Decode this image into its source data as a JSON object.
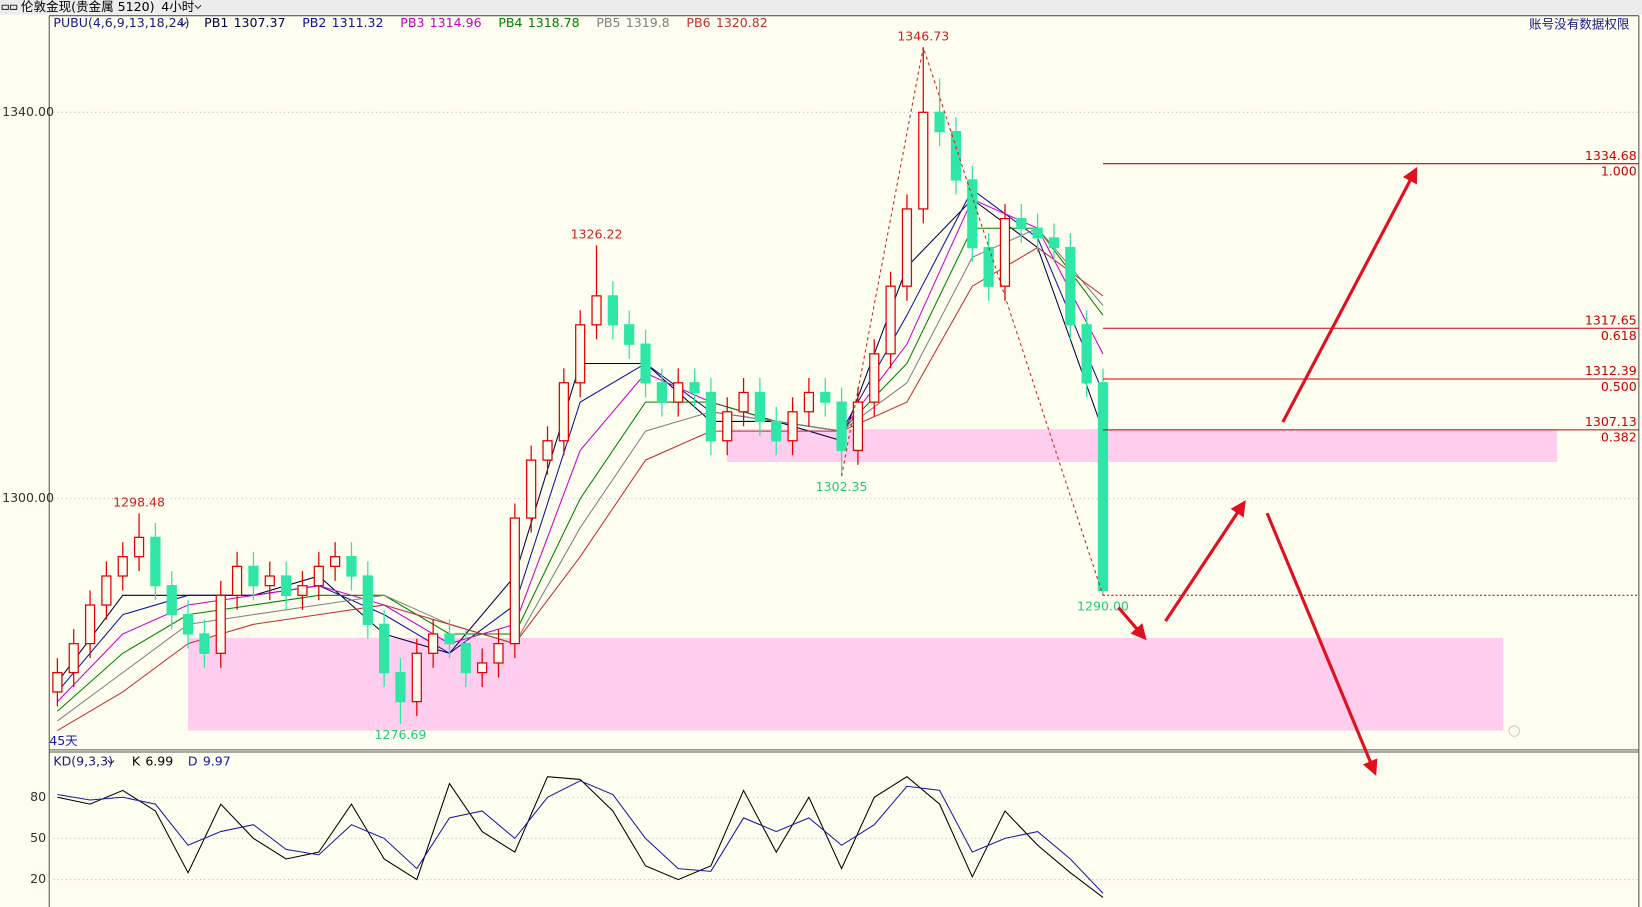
{
  "header": {
    "instrument": "伦敦金现(贵金属 5120)",
    "timeframe": "4小时",
    "notice": "账号没有数据权限"
  },
  "chart_data": [
    {
      "type": "candlestick",
      "indicator": "PUBU(4,6,9,13,18,24)",
      "period_label": "45天",
      "xlim": [
        -0.5,
        96.8
      ],
      "ylim": [
        1274,
        1350
      ],
      "yticks": [
        {
          "value": 1340,
          "label": "1340.00"
        },
        {
          "value": 1300,
          "label": "1300.00"
        }
      ],
      "grid": true,
      "up_color": "#e00000",
      "down_color": "#2fe6a6",
      "open": [
        1280,
        1282,
        1285,
        1289,
        1292,
        1294,
        1296,
        1291,
        1288,
        1286,
        1284,
        1290,
        1293,
        1291,
        1292,
        1290,
        1291,
        1293,
        1294,
        1292,
        1287,
        1282,
        1279,
        1284,
        1286,
        1285,
        1282,
        1283,
        1285,
        1298,
        1304,
        1306,
        1312,
        1318,
        1321,
        1318,
        1316,
        1312,
        1310,
        1312,
        1311,
        1306,
        1309,
        1311,
        1308,
        1306,
        1309,
        1311,
        1310,
        1305,
        1310,
        1315,
        1322,
        1330,
        1340,
        1338,
        1333,
        1326,
        1322,
        1329,
        1328,
        1327,
        1326,
        1318,
        1312
      ],
      "high": [
        1283.5,
        1286.5,
        1290.5,
        1293.5,
        1295.5,
        1298.48,
        1297.5,
        1292.5,
        1289.5,
        1287.5,
        1291.5,
        1294.5,
        1294.5,
        1293.5,
        1293.5,
        1292.5,
        1294.5,
        1295.5,
        1295.5,
        1293.5,
        1288.5,
        1283.5,
        1285.5,
        1287.5,
        1287.5,
        1286.5,
        1284.5,
        1286.5,
        1299.5,
        1305.5,
        1307.5,
        1313.5,
        1319.5,
        1326.22,
        1322.5,
        1319.5,
        1317.5,
        1313.5,
        1313.5,
        1313.5,
        1312.5,
        1310.5,
        1312.5,
        1312.5,
        1309.5,
        1310.5,
        1312.5,
        1312.5,
        1311.5,
        1311.5,
        1316.5,
        1323.5,
        1331.5,
        1346.73,
        1343.5,
        1339.5,
        1334.5,
        1327.5,
        1330.5,
        1330.5,
        1329.5,
        1328.5,
        1327.5,
        1319.5,
        1313.5
      ],
      "low": [
        1278.5,
        1280.5,
        1283.5,
        1287.5,
        1290.5,
        1292.5,
        1289.5,
        1286.5,
        1284.5,
        1282.5,
        1282.5,
        1288.5,
        1289.5,
        1289.5,
        1288.5,
        1288.5,
        1289.5,
        1291.5,
        1290.5,
        1285.5,
        1280.5,
        1276.69,
        1277.5,
        1282.5,
        1283.5,
        1280.5,
        1280.5,
        1281.5,
        1283.5,
        1296.5,
        1302.5,
        1304.5,
        1310.5,
        1316.5,
        1316.5,
        1314.5,
        1310.5,
        1308.5,
        1308.5,
        1309.5,
        1304.5,
        1304.5,
        1307.5,
        1306.5,
        1304.5,
        1304.5,
        1307.5,
        1308.5,
        1302.35,
        1303.5,
        1308.5,
        1313.5,
        1320.5,
        1328.5,
        1336.5,
        1331.5,
        1324.5,
        1320.5,
        1320.5,
        1326.5,
        1325.5,
        1324.5,
        1316.5,
        1310.5,
        1290
      ],
      "close": [
        1282,
        1285,
        1289,
        1292,
        1294,
        1296,
        1291,
        1288,
        1286,
        1284,
        1290,
        1293,
        1291,
        1292,
        1290,
        1291,
        1293,
        1294,
        1292,
        1287,
        1282,
        1279,
        1284,
        1286,
        1285,
        1282,
        1283,
        1285,
        1298,
        1304,
        1306,
        1312,
        1318,
        1321,
        1318,
        1316,
        1312,
        1310,
        1312,
        1311,
        1306,
        1309,
        1311,
        1308,
        1306,
        1309,
        1311,
        1310,
        1305,
        1310,
        1315,
        1322,
        1330,
        1340,
        1338,
        1333,
        1326,
        1322,
        1329,
        1328,
        1327,
        1326,
        1318,
        1312,
        1290.5
      ],
      "series_x": [
        0,
        4,
        8,
        12,
        16,
        20,
        24,
        28,
        32,
        36,
        40,
        44,
        48,
        52,
        56,
        60,
        64
      ],
      "series": [
        {
          "name": "PB1",
          "last": 1307.37,
          "color": "#000040",
          "values": [
            1281,
            1290,
            1290,
            1290,
            1292,
            1286,
            1284,
            1292,
            1314,
            1314,
            1308,
            1308,
            1306,
            1324,
            1331,
            1326,
            1307
          ]
        },
        {
          "name": "PB2",
          "last": 1311.32,
          "color": "#1010a0",
          "values": [
            1280,
            1288,
            1290,
            1290,
            1291,
            1288,
            1284,
            1289,
            1310,
            1314,
            1309,
            1308,
            1307,
            1319,
            1332,
            1327,
            1311
          ]
        },
        {
          "name": "PB3",
          "last": 1314.96,
          "color": "#cc00cc",
          "values": [
            1279,
            1286,
            1289,
            1290,
            1291,
            1289,
            1285,
            1287,
            1305,
            1313,
            1310,
            1308,
            1307,
            1316,
            1331,
            1328,
            1315
          ]
        },
        {
          "name": "PB4",
          "last": 1318.78,
          "color": "#008000",
          "values": [
            1278,
            1284,
            1288,
            1289,
            1290,
            1290,
            1286,
            1286,
            1300,
            1310,
            1310,
            1308,
            1307,
            1314,
            1328,
            1328,
            1319
          ]
        },
        {
          "name": "PB5",
          "last": 1319.8,
          "color": "#808080",
          "values": [
            1277,
            1282,
            1287,
            1288,
            1289,
            1290,
            1287,
            1285,
            1297,
            1307,
            1309,
            1308,
            1307,
            1312,
            1325,
            1328,
            1320
          ]
        },
        {
          "name": "PB6",
          "last": 1320.82,
          "color": "#c03030",
          "values": [
            1276,
            1280,
            1285,
            1287,
            1288,
            1289,
            1287,
            1285,
            1294,
            1304,
            1307,
            1307,
            1307,
            1310,
            1322,
            1326,
            1321
          ]
        }
      ],
      "annotations": [
        {
          "x": 5,
          "y": 1298.48
        },
        {
          "x": 33,
          "y": 1326.22
        },
        {
          "x": 53,
          "y": 1346.73
        },
        {
          "x": 48,
          "y": 1302.35
        },
        {
          "x": 21,
          "y": 1276.69
        },
        {
          "x": 64,
          "y": 1290,
          "label": "1290.00"
        }
      ],
      "zones": [
        {
          "x": [
            41,
            91.8
          ],
          "y": [
            1303.8,
            1307.2
          ],
          "color": "#ffcdee"
        },
        {
          "x": [
            8,
            88.5
          ],
          "y": [
            1276,
            1285.6
          ],
          "color": "#ffcdee"
        }
      ],
      "fib_color": "#cc0000",
      "fib_levels": [
        {
          "price": 1334.68,
          "ratio": {
            "value": 1,
            "label": "1.000"
          }
        },
        {
          "price": 1317.65,
          "ratio": 0.618
        },
        {
          "price": 1312.39,
          "ratio": {
            "value": 0.5,
            "label": "0.500"
          }
        },
        {
          "price": 1307.13,
          "ratio": 0.382
        }
      ]
    },
    {
      "type": "line",
      "title": "KD(9,3,3)",
      "xlim": [
        -0.5,
        96.8
      ],
      "ylim": [
        0,
        113
      ],
      "yticks": [
        80,
        50,
        20
      ],
      "grid": true,
      "x": [
        0,
        2,
        4,
        6,
        8,
        10,
        12,
        14,
        16,
        18,
        20,
        22,
        24,
        26,
        28,
        30,
        32,
        34,
        36,
        38,
        40,
        42,
        44,
        46,
        48,
        50,
        52,
        54,
        56,
        58,
        60,
        62,
        64
      ],
      "series": [
        {
          "name": "K",
          "last": 6.99,
          "color": "#000000",
          "values": [
            80,
            75,
            85,
            70,
            25,
            75,
            50,
            35,
            40,
            75,
            35,
            20,
            90,
            55,
            40,
            95,
            93,
            70,
            30,
            20,
            30,
            85,
            40,
            80,
            28,
            80,
            95,
            75,
            22,
            70,
            45,
            25,
            7
          ]
        },
        {
          "name": "D",
          "last": 9.97,
          "color": "#1a1aa0",
          "values": [
            82,
            78,
            80,
            75,
            45,
            55,
            60,
            42,
            38,
            60,
            50,
            28,
            65,
            70,
            50,
            80,
            92,
            82,
            50,
            28,
            26,
            65,
            55,
            65,
            45,
            60,
            88,
            85,
            40,
            50,
            55,
            35,
            10
          ]
        }
      ]
    }
  ]
}
